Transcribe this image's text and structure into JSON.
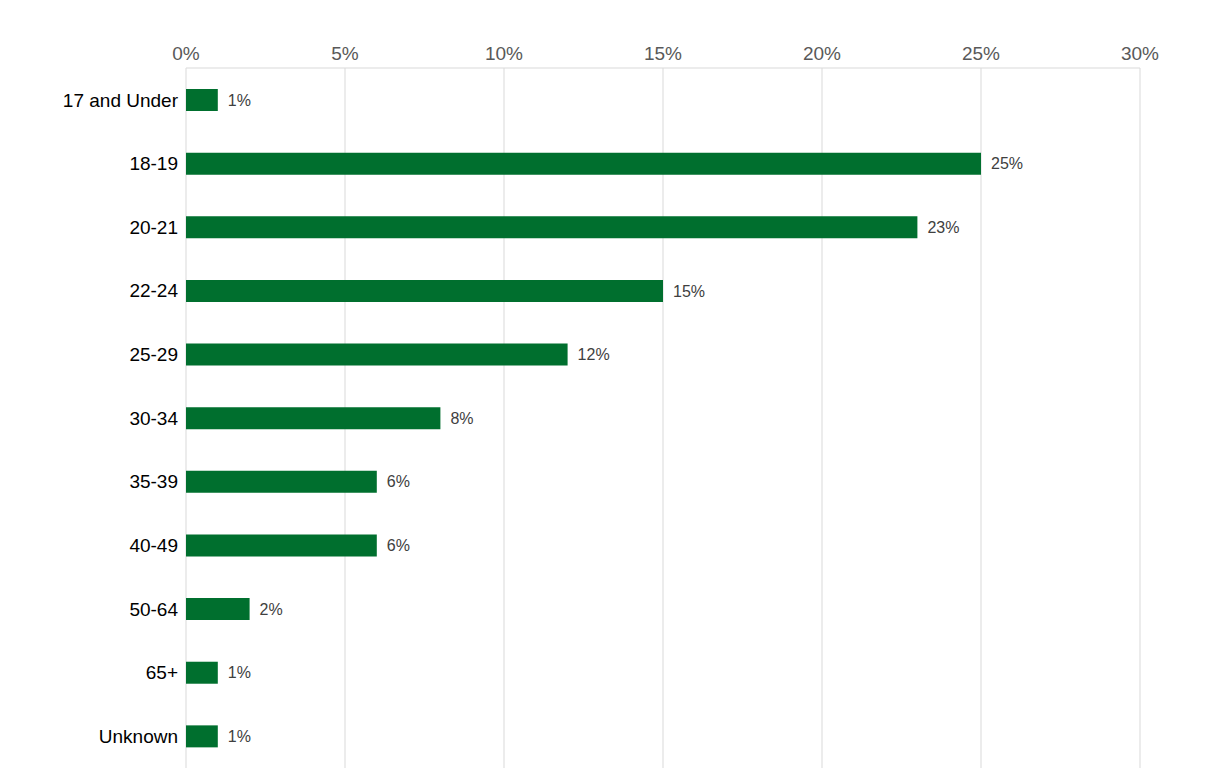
{
  "chart_data": {
    "type": "bar",
    "orientation": "horizontal",
    "categories": [
      "17 and Under",
      "18-19",
      "20-21",
      "22-24",
      "25-29",
      "30-34",
      "35-39",
      "40-49",
      "50-64",
      "65+",
      "Unknown"
    ],
    "values": [
      1,
      25,
      23,
      15,
      12,
      8,
      6,
      6,
      2,
      1,
      1
    ],
    "value_labels": [
      "1%",
      "25%",
      "23%",
      "15%",
      "12%",
      "8%",
      "6%",
      "6%",
      "2%",
      "1%",
      "1%"
    ],
    "color": "#006f2e",
    "xlim": [
      0,
      30
    ],
    "xticks": [
      {
        "value": 0,
        "label": "0%"
      },
      {
        "value": 5,
        "label": "5%"
      },
      {
        "value": 10,
        "label": "10%"
      },
      {
        "value": 15,
        "label": "15%"
      },
      {
        "value": 20,
        "label": "20%"
      },
      {
        "value": 25,
        "label": "25%"
      },
      {
        "value": 30,
        "label": "30%"
      }
    ],
    "grid": true,
    "data_labels": true
  }
}
